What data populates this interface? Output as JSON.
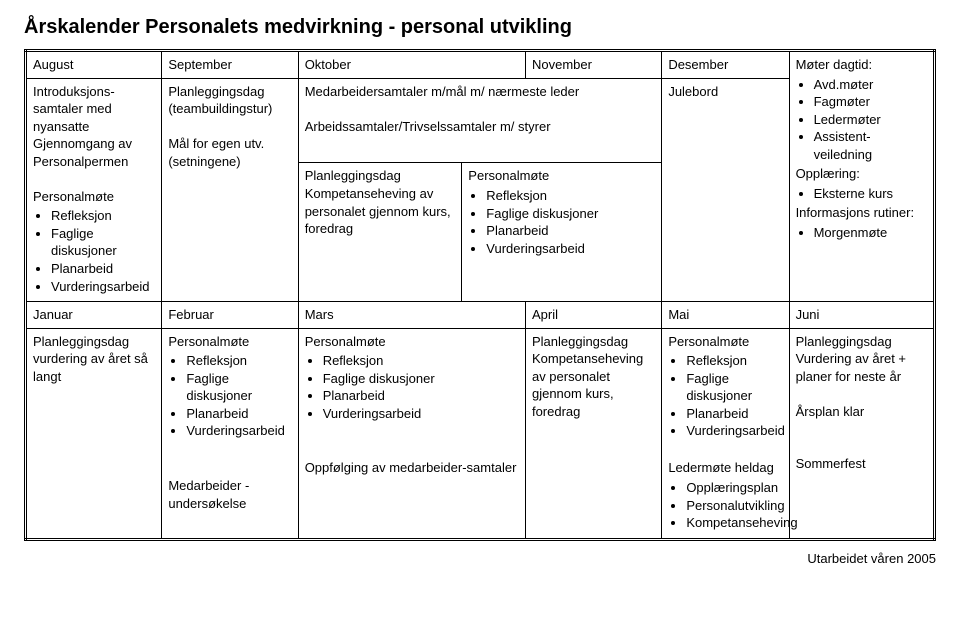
{
  "title": "Årskalender Personalets medvirkning - personal utvikling",
  "footer": "Utarbeidet våren 2005",
  "months_top": {
    "august": "August",
    "september": "September",
    "oktober": "Oktober",
    "november": "November",
    "desember": "Desember"
  },
  "months_bottom": {
    "januar": "Januar",
    "februar": "Februar",
    "mars": "Mars",
    "april": "April",
    "mai": "Mai",
    "juni": "Juni"
  },
  "aug": {
    "line1": "Introduksjons-samtaler med nyansatte",
    "line2": "Gjennomgang av Personalpermen",
    "pm_title": "Personalmøte",
    "pm_items": [
      "Refleksjon",
      "Faglige diskusjoner",
      "Planarbeid",
      "Vurderingsarbeid"
    ]
  },
  "sep": {
    "line1": "Planleggingsdag (teambuildingstur)",
    "line2": "Mål for egen utv. (setningene)"
  },
  "okt_top": {
    "line1": "Medarbeidersamtaler m/mål m/ nærmeste leder",
    "line2": "Arbeidssamtaler/Trivselssamtaler m/ styrer"
  },
  "okt_split": {
    "left": "Planleggingsdag Kompetanseheving av personalet gjennom kurs, foredrag",
    "right_title": "Personalmøte",
    "right_items": [
      "Refleksjon",
      "Faglige diskusjoner",
      "Planarbeid",
      "Vurderingsarbeid"
    ]
  },
  "des": {
    "text": "Julebord"
  },
  "ekstra_top": {
    "line1": "Møter dagtid:",
    "items1": [
      "Avd.møter",
      "Fagmøter",
      "Ledermøter",
      "Assistent-veiledning"
    ],
    "line2": "Opplæring:",
    "items2": [
      "Eksterne kurs"
    ],
    "line3": "Informasjons rutiner:",
    "items3": [
      "Morgenmøte"
    ]
  },
  "jan": {
    "text": "Planleggingsdag vurdering av året så langt"
  },
  "feb": {
    "pm_title": "Personalmøte",
    "pm_items": [
      "Refleksjon",
      "Faglige diskusjoner",
      "Planarbeid",
      "Vurderingsarbeid"
    ],
    "extra": "Medarbeider - undersøkelse"
  },
  "mar": {
    "pm_title": "Personalmøte",
    "pm_items": [
      "Refleksjon",
      "Faglige diskusjoner",
      "Planarbeid",
      "Vurderingsarbeid"
    ],
    "extra": "Oppfølging av medarbeider-samtaler"
  },
  "apr": {
    "text": "Planleggingsdag Kompetanseheving av personalet gjennom kurs, foredrag"
  },
  "mai": {
    "pm_title": "Personalmøte",
    "pm_items": [
      "Refleksjon",
      "Faglige diskusjoner",
      "Planarbeid",
      "Vurderingsarbeid"
    ],
    "extra_title": "Ledermøte heldag",
    "extra_items": [
      "Opplæringsplan",
      "Personalutvikling",
      "Kompetanseheving"
    ]
  },
  "jun": {
    "line1": "Planleggingsdag Vurdering av året + planer for neste år",
    "line2": "Årsplan klar",
    "line3": "Sommerfest"
  }
}
